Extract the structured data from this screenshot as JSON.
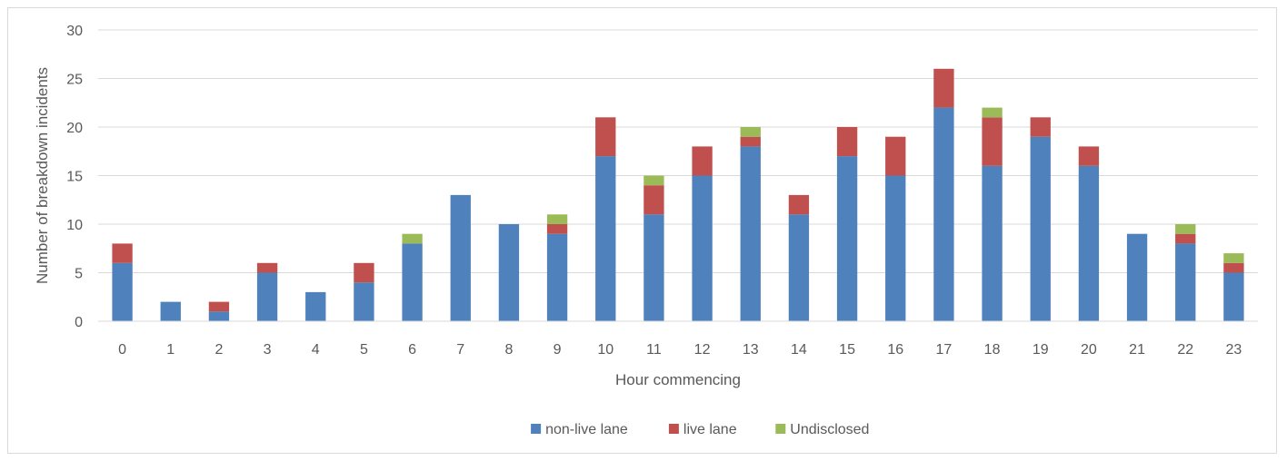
{
  "chart_data": {
    "type": "bar",
    "stacked": true,
    "title": "",
    "xlabel": "Hour commencing",
    "ylabel": "Number of breakdown incidents",
    "ylim": [
      0,
      30
    ],
    "yticks": [
      0,
      5,
      10,
      15,
      20,
      25,
      30
    ],
    "grid": true,
    "legend_position": "bottom",
    "categories": [
      "0",
      "1",
      "2",
      "3",
      "4",
      "5",
      "6",
      "7",
      "8",
      "9",
      "10",
      "11",
      "12",
      "13",
      "14",
      "15",
      "16",
      "17",
      "18",
      "19",
      "20",
      "21",
      "22",
      "23"
    ],
    "series": [
      {
        "name": "non-live lane",
        "color": "#4f81bd",
        "values": [
          6,
          2,
          1,
          5,
          3,
          4,
          8,
          13,
          10,
          9,
          17,
          11,
          15,
          18,
          11,
          17,
          15,
          22,
          16,
          19,
          16,
          9,
          8,
          5
        ]
      },
      {
        "name": "live lane",
        "color": "#c0504d",
        "values": [
          2,
          0,
          1,
          1,
          0,
          2,
          0,
          0,
          0,
          1,
          4,
          3,
          3,
          1,
          2,
          3,
          4,
          4,
          5,
          2,
          2,
          0,
          1,
          1
        ]
      },
      {
        "name": "Undisclosed",
        "color": "#9bbb59",
        "values": [
          0,
          0,
          0,
          0,
          0,
          0,
          1,
          0,
          0,
          1,
          0,
          1,
          0,
          1,
          0,
          0,
          0,
          0,
          1,
          0,
          0,
          0,
          1,
          1
        ]
      }
    ]
  }
}
